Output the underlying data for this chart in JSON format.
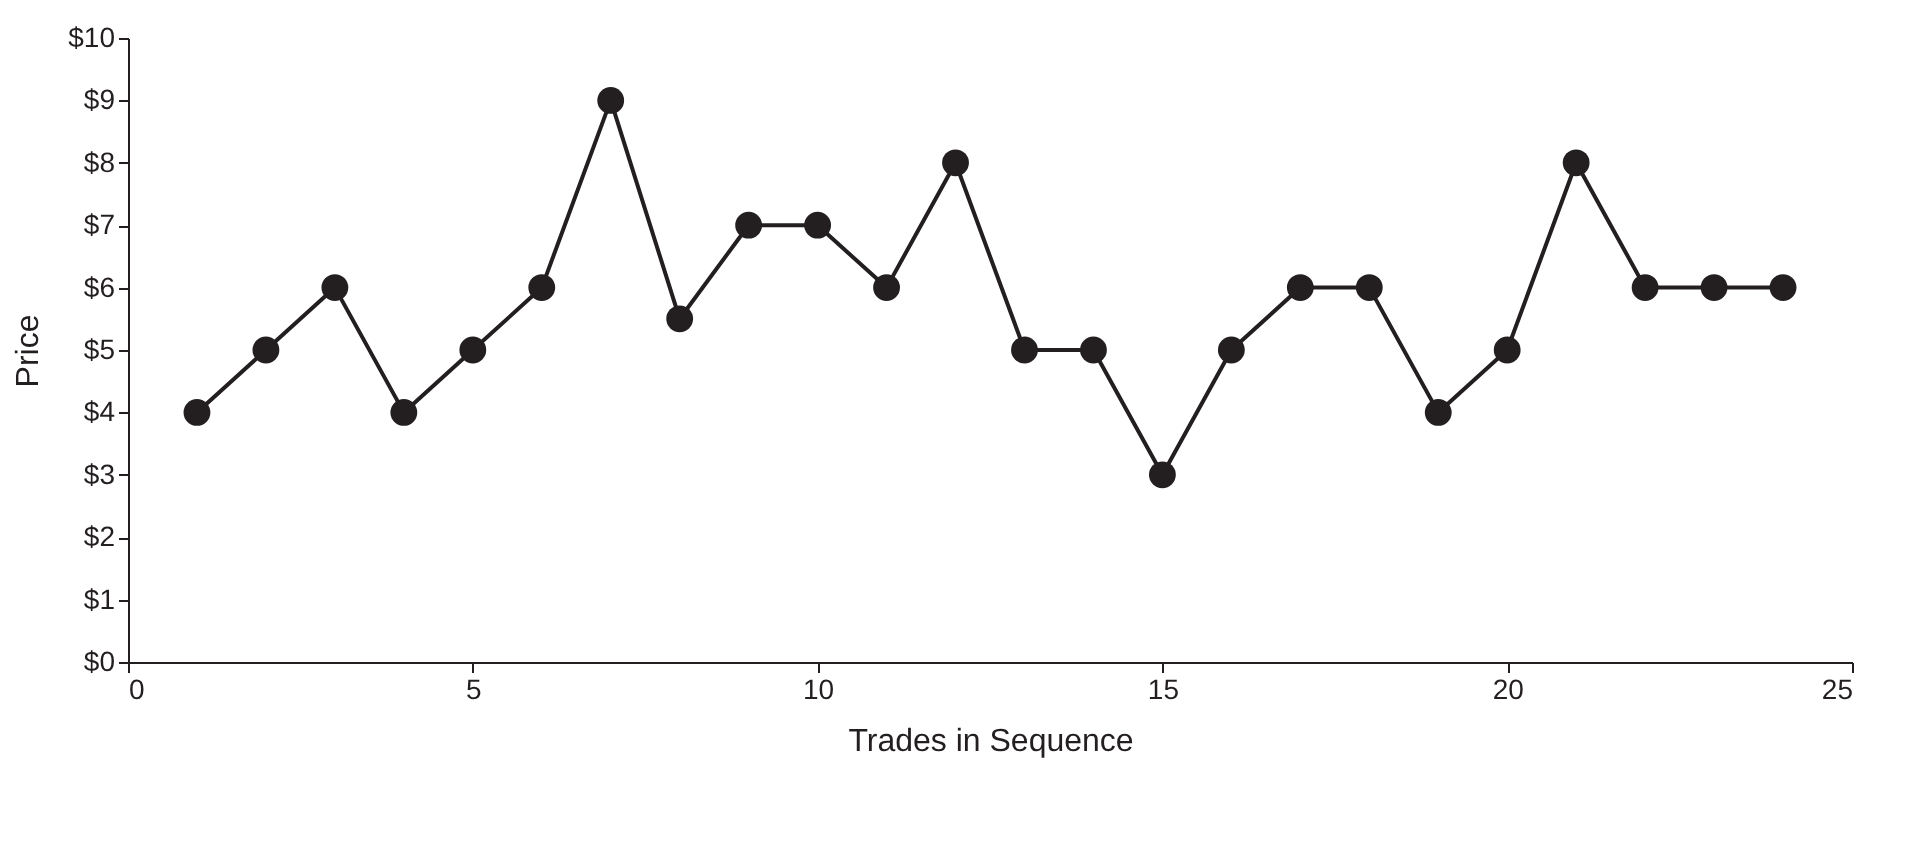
{
  "chart_data": {
    "type": "line",
    "xlabel": "Trades in Sequence",
    "ylabel": "Price",
    "x": [
      1,
      2,
      3,
      4,
      5,
      6,
      7,
      8,
      9,
      10,
      11,
      12,
      13,
      14,
      15,
      16,
      17,
      18,
      19,
      20,
      21,
      22,
      23,
      24
    ],
    "series": [
      {
        "color": "#231f20",
        "values": [
          4,
          5,
          6,
          4,
          5,
          6,
          9,
          5.5,
          7,
          7,
          6,
          8,
          5,
          5,
          3,
          5,
          6,
          6,
          4,
          5,
          8,
          6,
          6,
          6
        ]
      }
    ],
    "xlim": [
      0,
      25
    ],
    "xticks": [
      0,
      5,
      10,
      15,
      20,
      25
    ],
    "ylim": [
      0,
      10
    ],
    "yticks": [
      {
        "value": 0,
        "label": "$0"
      },
      {
        "value": 1,
        "label": "$1"
      },
      {
        "value": 2,
        "label": "$2"
      },
      {
        "value": 3,
        "label": "$3"
      },
      {
        "value": 4,
        "label": "$4"
      },
      {
        "value": 5,
        "label": "$5"
      },
      {
        "value": 6,
        "label": "$6"
      },
      {
        "value": 7,
        "label": "$7"
      },
      {
        "value": 8,
        "label": "$8"
      },
      {
        "value": 9,
        "label": "$9"
      },
      {
        "value": 10,
        "label": "$10"
      }
    ],
    "grid": false,
    "marker": "circle",
    "line_style": "solid"
  }
}
